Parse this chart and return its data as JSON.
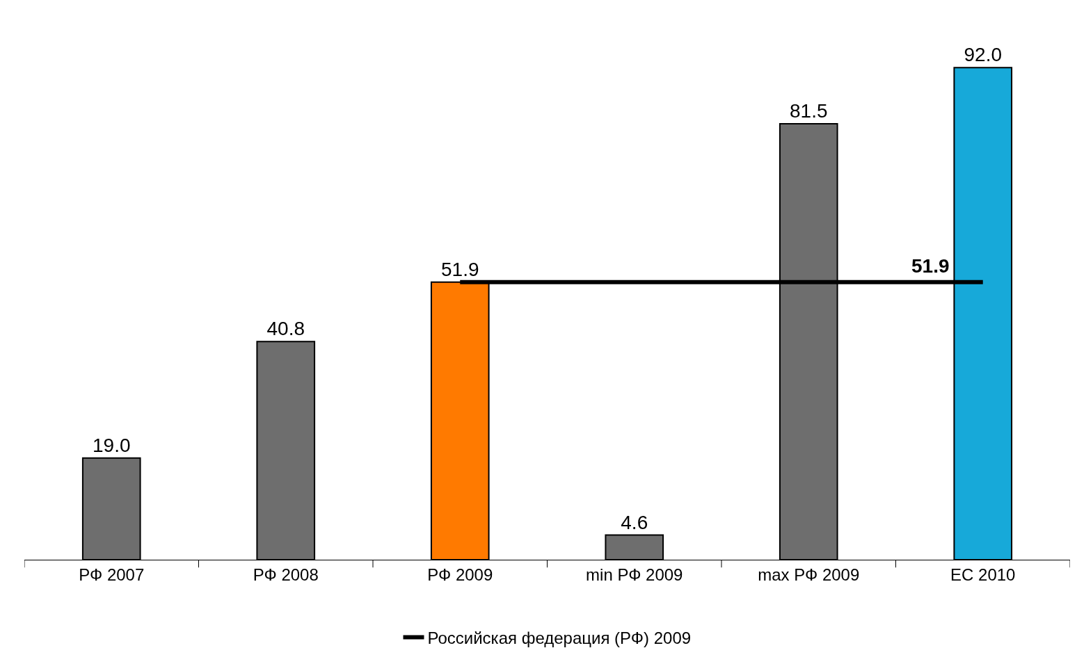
{
  "chart_data": {
    "type": "bar",
    "categories": [
      "РФ 2007",
      "РФ 2008",
      "РФ 2009",
      "min РФ 2009",
      "max РФ 2009",
      "ЕС 2010"
    ],
    "series": [
      {
        "values": [
          19.0,
          40.8,
          51.9,
          4.6,
          81.5,
          92.0
        ],
        "colors": [
          "#6e6e6e",
          "#6e6e6e",
          "#ff7a00",
          "#6e6e6e",
          "#6e6e6e",
          "#17a9d9"
        ],
        "value_labels": [
          "19.0",
          "40.8",
          "51.9",
          "4.6",
          "81.5",
          "92.0"
        ]
      },
      {
        "type": "line",
        "name": "Российская федерация (РФ) 2009",
        "color": "#000000",
        "values": [
          null,
          null,
          51.9,
          51.9,
          51.9,
          51.9
        ],
        "value_labels": [
          null,
          null,
          null,
          null,
          null,
          "51.9"
        ]
      }
    ],
    "legend": "bottom",
    "marker": "none",
    "line_style": "solid"
  }
}
